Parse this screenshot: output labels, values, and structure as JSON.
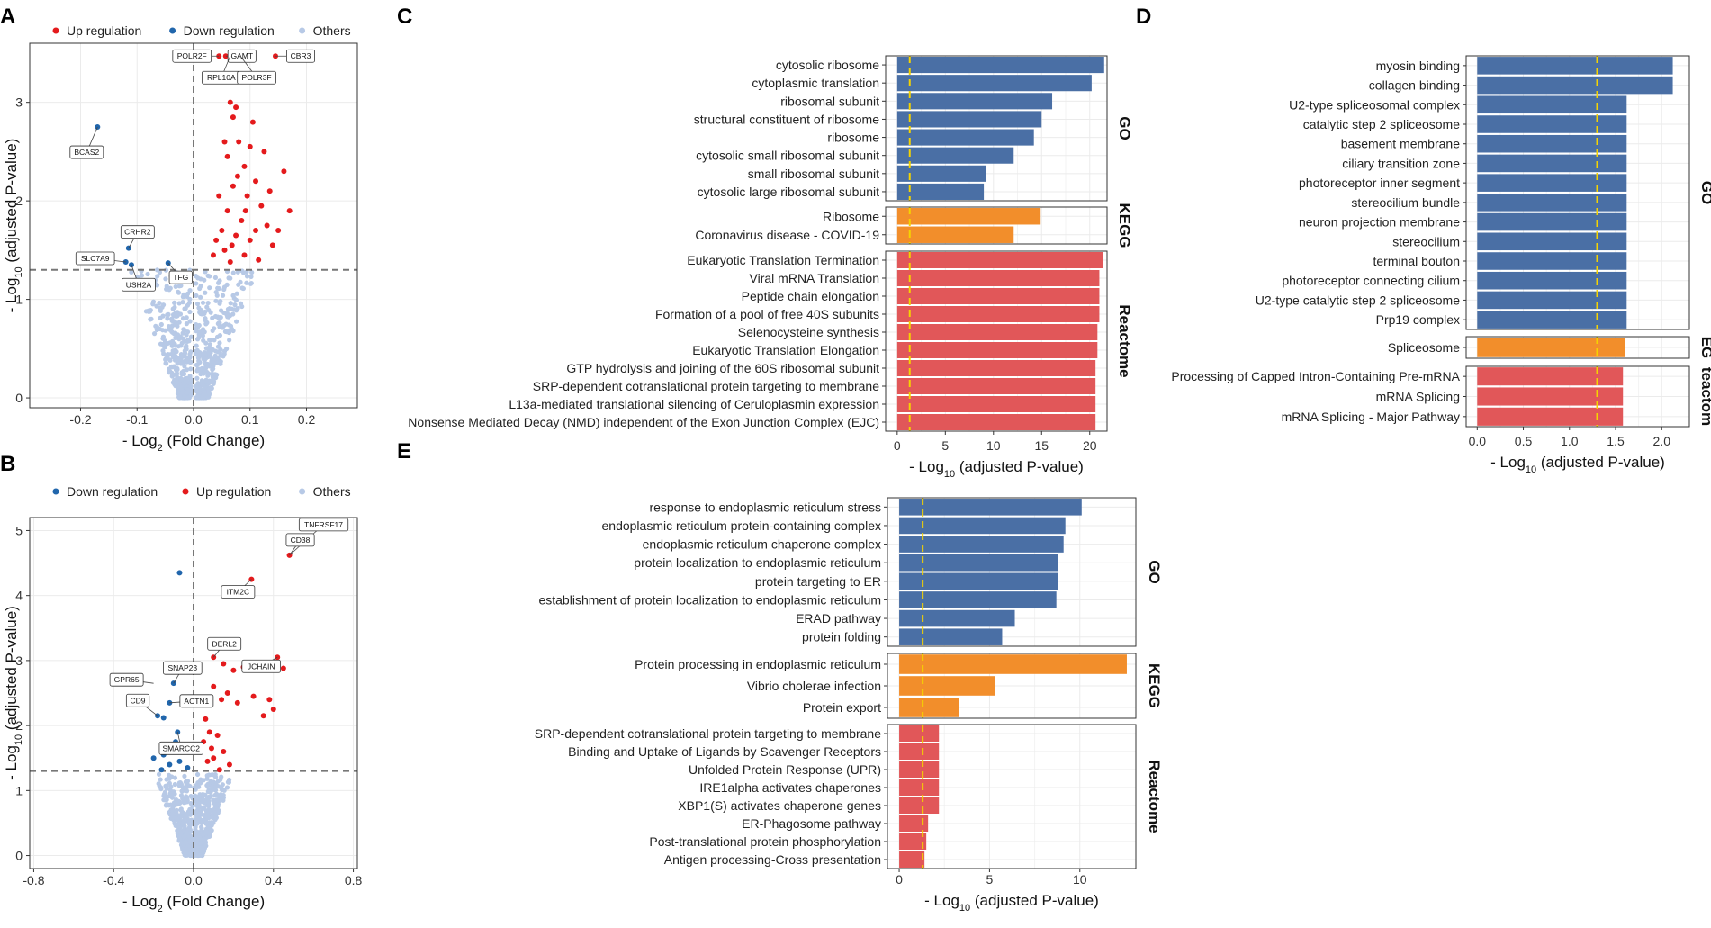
{
  "colors": {
    "up": "#e41a1c",
    "down": "#2166ac",
    "others": "#b7c9e6",
    "go": "#4a6fa5",
    "kegg": "#f28e2b",
    "reactome": "#e15759",
    "threshold": "#f5d300",
    "grid": "#ebebeb"
  },
  "panels": {
    "A": "A",
    "B": "B",
    "C": "C",
    "D": "D",
    "E": "E"
  },
  "chart_data": [
    {
      "id": "A",
      "type": "scatter",
      "legend": [
        "Up regulation",
        "Down regulation",
        "Others"
      ],
      "xlabel": "- Log2 (Fold Change)",
      "xlabel_main": "- Log",
      "xlabel_sub": "2",
      "xlabel_rest": " (Fold Change)",
      "ylabel_main": "- Log",
      "ylabel_sub": "10",
      "ylabel_rest": " (adjusted P-value)",
      "xlim": [
        -0.29,
        0.29
      ],
      "ylim": [
        -0.1,
        3.6
      ],
      "xticks": [
        -0.2,
        -0.1,
        0.0,
        0.1,
        0.2
      ],
      "xtick_labels": [
        "-0.2",
        "-0.1",
        "0.0",
        "0.1",
        "0.2"
      ],
      "yticks": [
        0,
        1,
        2,
        3
      ],
      "ytick_labels": [
        "0",
        "1",
        "2",
        "3"
      ],
      "hline": 1.3,
      "vline": 0,
      "up_points": [
        [
          0.045,
          3.47
        ],
        [
          0.057,
          3.47
        ],
        [
          0.083,
          3.47
        ],
        [
          0.145,
          3.47
        ],
        [
          0.065,
          3.0
        ],
        [
          0.075,
          2.95
        ],
        [
          0.07,
          2.85
        ],
        [
          0.08,
          2.6
        ],
        [
          0.1,
          2.55
        ],
        [
          0.06,
          2.45
        ],
        [
          0.09,
          2.35
        ],
        [
          0.11,
          2.2
        ],
        [
          0.07,
          2.15
        ],
        [
          0.095,
          2.05
        ],
        [
          0.12,
          1.95
        ],
        [
          0.06,
          1.9
        ],
        [
          0.085,
          1.8
        ],
        [
          0.13,
          1.75
        ],
        [
          0.05,
          1.7
        ],
        [
          0.075,
          1.65
        ],
        [
          0.1,
          1.6
        ],
        [
          0.14,
          1.55
        ],
        [
          0.055,
          1.5
        ],
        [
          0.09,
          1.45
        ],
        [
          0.115,
          1.4
        ],
        [
          0.065,
          1.38
        ],
        [
          0.035,
          1.45
        ],
        [
          0.15,
          1.7
        ],
        [
          0.17,
          1.9
        ],
        [
          0.16,
          2.3
        ],
        [
          0.125,
          2.5
        ],
        [
          0.045,
          2.05
        ],
        [
          0.105,
          2.8
        ],
        [
          0.055,
          2.6
        ],
        [
          0.135,
          2.1
        ],
        [
          0.04,
          1.6
        ],
        [
          0.078,
          2.25
        ],
        [
          0.092,
          1.9
        ],
        [
          0.11,
          1.7
        ],
        [
          0.068,
          1.55
        ]
      ],
      "down_points": [
        [
          -0.17,
          2.75
        ],
        [
          -0.115,
          1.52
        ],
        [
          -0.12,
          1.38
        ],
        [
          -0.11,
          1.35
        ],
        [
          -0.045,
          1.37
        ]
      ],
      "labels": [
        {
          "text": "POLR2F",
          "x": 0.045,
          "y": 3.47,
          "dx": -30,
          "dy": 0
        },
        {
          "text": "GAMT",
          "x": 0.057,
          "y": 3.47,
          "dx": 18,
          "dy": 0
        },
        {
          "text": "RPL10A",
          "x": 0.065,
          "y": 3.47,
          "dx": -10,
          "dy": 24
        },
        {
          "text": "CBR3",
          "x": 0.145,
          "y": 3.47,
          "dx": 28,
          "dy": 0
        },
        {
          "text": "POLR3F",
          "x": 0.083,
          "y": 3.47,
          "dx": 18,
          "dy": 24
        },
        {
          "text": "BCAS2",
          "x": -0.17,
          "y": 2.75,
          "dx": -12,
          "dy": 28
        },
        {
          "text": "CRHR2",
          "x": -0.115,
          "y": 1.52,
          "dx": 10,
          "dy": -18
        },
        {
          "text": "SLC7A9",
          "x": -0.12,
          "y": 1.38,
          "dx": -34,
          "dy": -4
        },
        {
          "text": "TFG",
          "x": -0.045,
          "y": 1.37,
          "dx": 14,
          "dy": 16
        },
        {
          "text": "USH2A",
          "x": -0.11,
          "y": 1.35,
          "dx": 8,
          "dy": 22
        }
      ]
    },
    {
      "id": "B",
      "type": "scatter",
      "legend": [
        "Down regulation",
        "Up regulation",
        "Others"
      ],
      "xlabel": "- Log2 (Fold Change)",
      "xlabel_main": "- Log",
      "xlabel_sub": "2",
      "xlabel_rest": " (Fold Change)",
      "ylabel_main": "- Log",
      "ylabel_sub": "10",
      "ylabel_rest": " (adjusted P-value)",
      "xlim": [
        -0.82,
        0.82
      ],
      "ylim": [
        -0.2,
        5.2
      ],
      "xticks": [
        -0.8,
        -0.4,
        0.0,
        0.4,
        0.8
      ],
      "xtick_labels": [
        "-0.8",
        "-0.4",
        "0.0",
        "0.4",
        "0.8"
      ],
      "yticks": [
        0,
        1,
        2,
        3,
        4,
        5
      ],
      "ytick_labels": [
        "0",
        "1",
        "2",
        "3",
        "4",
        "5"
      ],
      "hline": 1.3,
      "vline": 0,
      "up_points": [
        [
          0.48,
          4.62
        ],
        [
          0.29,
          4.25
        ],
        [
          0.1,
          3.05
        ],
        [
          0.42,
          3.05
        ],
        [
          0.45,
          2.88
        ],
        [
          0.2,
          2.85
        ],
        [
          0.15,
          2.95
        ],
        [
          0.25,
          2.9
        ],
        [
          0.1,
          2.6
        ],
        [
          0.17,
          2.5
        ],
        [
          0.14,
          2.4
        ],
        [
          0.3,
          2.45
        ],
        [
          0.38,
          2.4
        ],
        [
          0.4,
          2.25
        ],
        [
          0.35,
          2.15
        ],
        [
          0.22,
          2.35
        ],
        [
          0.06,
          2.1
        ],
        [
          0.08,
          1.9
        ],
        [
          0.12,
          1.85
        ],
        [
          0.05,
          1.75
        ],
        [
          0.15,
          1.6
        ],
        [
          0.1,
          1.5
        ],
        [
          0.07,
          1.45
        ],
        [
          0.18,
          1.4
        ],
        [
          0.13,
          1.32
        ],
        [
          0.09,
          1.65
        ]
      ],
      "down_points": [
        [
          -0.07,
          4.35
        ],
        [
          -0.1,
          2.65
        ],
        [
          -0.12,
          2.35
        ],
        [
          -0.18,
          2.15
        ],
        [
          -0.15,
          2.12
        ],
        [
          -0.08,
          1.9
        ],
        [
          -0.1,
          1.65
        ],
        [
          -0.05,
          1.6
        ],
        [
          -0.15,
          1.55
        ],
        [
          -0.2,
          1.5
        ],
        [
          -0.07,
          1.45
        ],
        [
          -0.12,
          1.4
        ],
        [
          -0.03,
          1.35
        ],
        [
          -0.16,
          1.32
        ],
        [
          -0.09,
          1.75
        ],
        [
          -0.13,
          1.7
        ]
      ],
      "labels": [
        {
          "text": "TNFRSF17",
          "x": 0.48,
          "y": 4.62,
          "dx": 38,
          "dy": -34
        },
        {
          "text": "CD38",
          "x": 0.48,
          "y": 4.62,
          "dx": 12,
          "dy": -17
        },
        {
          "text": "ITM2C",
          "x": 0.29,
          "y": 4.25,
          "dx": -15,
          "dy": 14
        },
        {
          "text": "DERL2",
          "x": 0.1,
          "y": 3.05,
          "dx": 12,
          "dy": -15
        },
        {
          "text": "JCHAIN",
          "x": 0.42,
          "y": 3.05,
          "dx": -18,
          "dy": 10
        },
        {
          "text": "SNAP23",
          "x": -0.1,
          "y": 2.65,
          "dx": 10,
          "dy": -17
        },
        {
          "text": "GPR65",
          "x": -0.2,
          "y": 2.65,
          "dx": -30,
          "dy": -4
        },
        {
          "text": "CD9",
          "x": -0.18,
          "y": 2.15,
          "dx": -22,
          "dy": -17
        },
        {
          "text": "ACTN1",
          "x": -0.12,
          "y": 2.35,
          "dx": 30,
          "dy": -2
        },
        {
          "text": "SMARCC2",
          "x": -0.08,
          "y": 1.9,
          "dx": 4,
          "dy": 18
        }
      ]
    },
    {
      "id": "C",
      "type": "bar",
      "orientation": "horizontal",
      "xlabel_main": "- Log",
      "xlabel_sub": "10",
      "xlabel_rest": " (adjusted P-value)",
      "xlim": [
        -1.2,
        21.8
      ],
      "xticks": [
        0,
        5,
        10,
        15,
        20
      ],
      "xtick_labels": [
        "0",
        "5",
        "10",
        "15",
        "20"
      ],
      "threshold": 1.3,
      "groups": [
        {
          "name": "GO",
          "strip": "GO",
          "categories": [
            "cytosolic ribosome",
            "cytoplasmic translation",
            "ribosomal subunit",
            "structural constituent of ribosome",
            "ribosome",
            "cytosolic small ribosomal subunit",
            "small ribosomal subunit",
            "cytosolic large ribosomal subunit"
          ],
          "values": [
            21.5,
            20.2,
            16.1,
            15.0,
            14.2,
            12.1,
            9.2,
            9.0
          ]
        },
        {
          "name": "KEGG",
          "strip": "KEGG",
          "categories": [
            "Ribosome",
            "Coronavirus disease - COVID-19"
          ],
          "values": [
            14.9,
            12.1
          ]
        },
        {
          "name": "Reactome",
          "strip": "Reactome",
          "categories": [
            "Eukaryotic Translation Termination",
            "Viral mRNA Translation",
            "Peptide chain elongation",
            "Formation of a pool of free 40S subunits",
            "Selenocysteine synthesis",
            "Eukaryotic Translation Elongation",
            "GTP hydrolysis and joining of the 60S ribosomal subunit",
            "SRP-dependent cotranslational protein targeting to membrane",
            "L13a-mediated translational silencing of Ceruloplasmin expression",
            "Nonsense Mediated Decay (NMD) independent of the Exon Junction Complex (EJC)"
          ],
          "values": [
            21.4,
            21.0,
            21.0,
            21.0,
            20.8,
            20.8,
            20.6,
            20.6,
            20.6,
            20.6
          ]
        }
      ]
    },
    {
      "id": "D",
      "type": "bar",
      "orientation": "horizontal",
      "xlabel_main": "- Log",
      "xlabel_sub": "10",
      "xlabel_rest": " (adjusted P-value)",
      "xlim": [
        -0.12,
        2.3
      ],
      "xticks": [
        0.0,
        0.5,
        1.0,
        1.5,
        2.0
      ],
      "xtick_labels": [
        "0.0",
        "0.5",
        "1.0",
        "1.5",
        "2.0"
      ],
      "threshold": 1.3,
      "groups": [
        {
          "name": "GO",
          "strip": "GO",
          "categories": [
            "myosin binding",
            "collagen binding",
            "U2-type spliceosomal complex",
            "catalytic step 2 spliceosome",
            "basement membrane",
            "ciliary transition zone",
            "photoreceptor inner segment",
            "stereocilium bundle",
            "neuron projection membrane",
            "stereocilium",
            "terminal bouton",
            "photoreceptor connecting cilium",
            "U2-type catalytic step 2 spliceosome",
            "Prp19 complex"
          ],
          "values": [
            2.12,
            2.12,
            1.62,
            1.62,
            1.62,
            1.62,
            1.62,
            1.62,
            1.62,
            1.62,
            1.62,
            1.62,
            1.62,
            1.62
          ]
        },
        {
          "name": "KEGG",
          "strip": "EG",
          "categories": [
            "Spliceosome"
          ],
          "values": [
            1.6
          ]
        },
        {
          "name": "Reactome",
          "strip": "teactom",
          "categories": [
            "Processing of Capped Intron-Containing Pre-mRNA",
            "mRNA Splicing",
            "mRNA Splicing - Major Pathway"
          ],
          "values": [
            1.58,
            1.58,
            1.58
          ]
        }
      ]
    },
    {
      "id": "E",
      "type": "bar",
      "orientation": "horizontal",
      "xlabel_main": "- Log",
      "xlabel_sub": "10",
      "xlabel_rest": " (adjusted P-value)",
      "xlim": [
        -0.65,
        13.1
      ],
      "xticks": [
        0,
        5,
        10
      ],
      "xtick_labels": [
        "0",
        "5",
        "10"
      ],
      "threshold": 1.3,
      "groups": [
        {
          "name": "GO",
          "strip": "GO",
          "categories": [
            "response to endoplasmic reticulum stress",
            "endoplasmic reticulum protein-containing complex",
            "endoplasmic reticulum chaperone complex",
            "protein localization to endoplasmic reticulum",
            "protein targeting to ER",
            "establishment of protein localization to endoplasmic reticulum",
            "ERAD pathway",
            "protein folding"
          ],
          "values": [
            10.1,
            9.2,
            9.1,
            8.8,
            8.8,
            8.7,
            6.4,
            5.7
          ]
        },
        {
          "name": "KEGG",
          "strip": "KEGG",
          "categories": [
            "Protein processing in endoplasmic reticulum",
            "Vibrio cholerae infection",
            "Protein export"
          ],
          "values": [
            12.6,
            5.3,
            3.3
          ]
        },
        {
          "name": "Reactome",
          "strip": "Reactome",
          "categories": [
            "SRP-dependent cotranslational protein targeting to membrane",
            "Binding and Uptake of Ligands by Scavenger Receptors",
            "Unfolded Protein Response (UPR)",
            "IRE1alpha activates chaperones",
            "XBP1(S) activates chaperone genes",
            "ER-Phagosome pathway",
            "Post-translational protein phosphorylation",
            "Antigen processing-Cross presentation"
          ],
          "values": [
            2.2,
            2.2,
            2.2,
            2.2,
            2.2,
            1.6,
            1.5,
            1.4
          ]
        }
      ]
    }
  ]
}
